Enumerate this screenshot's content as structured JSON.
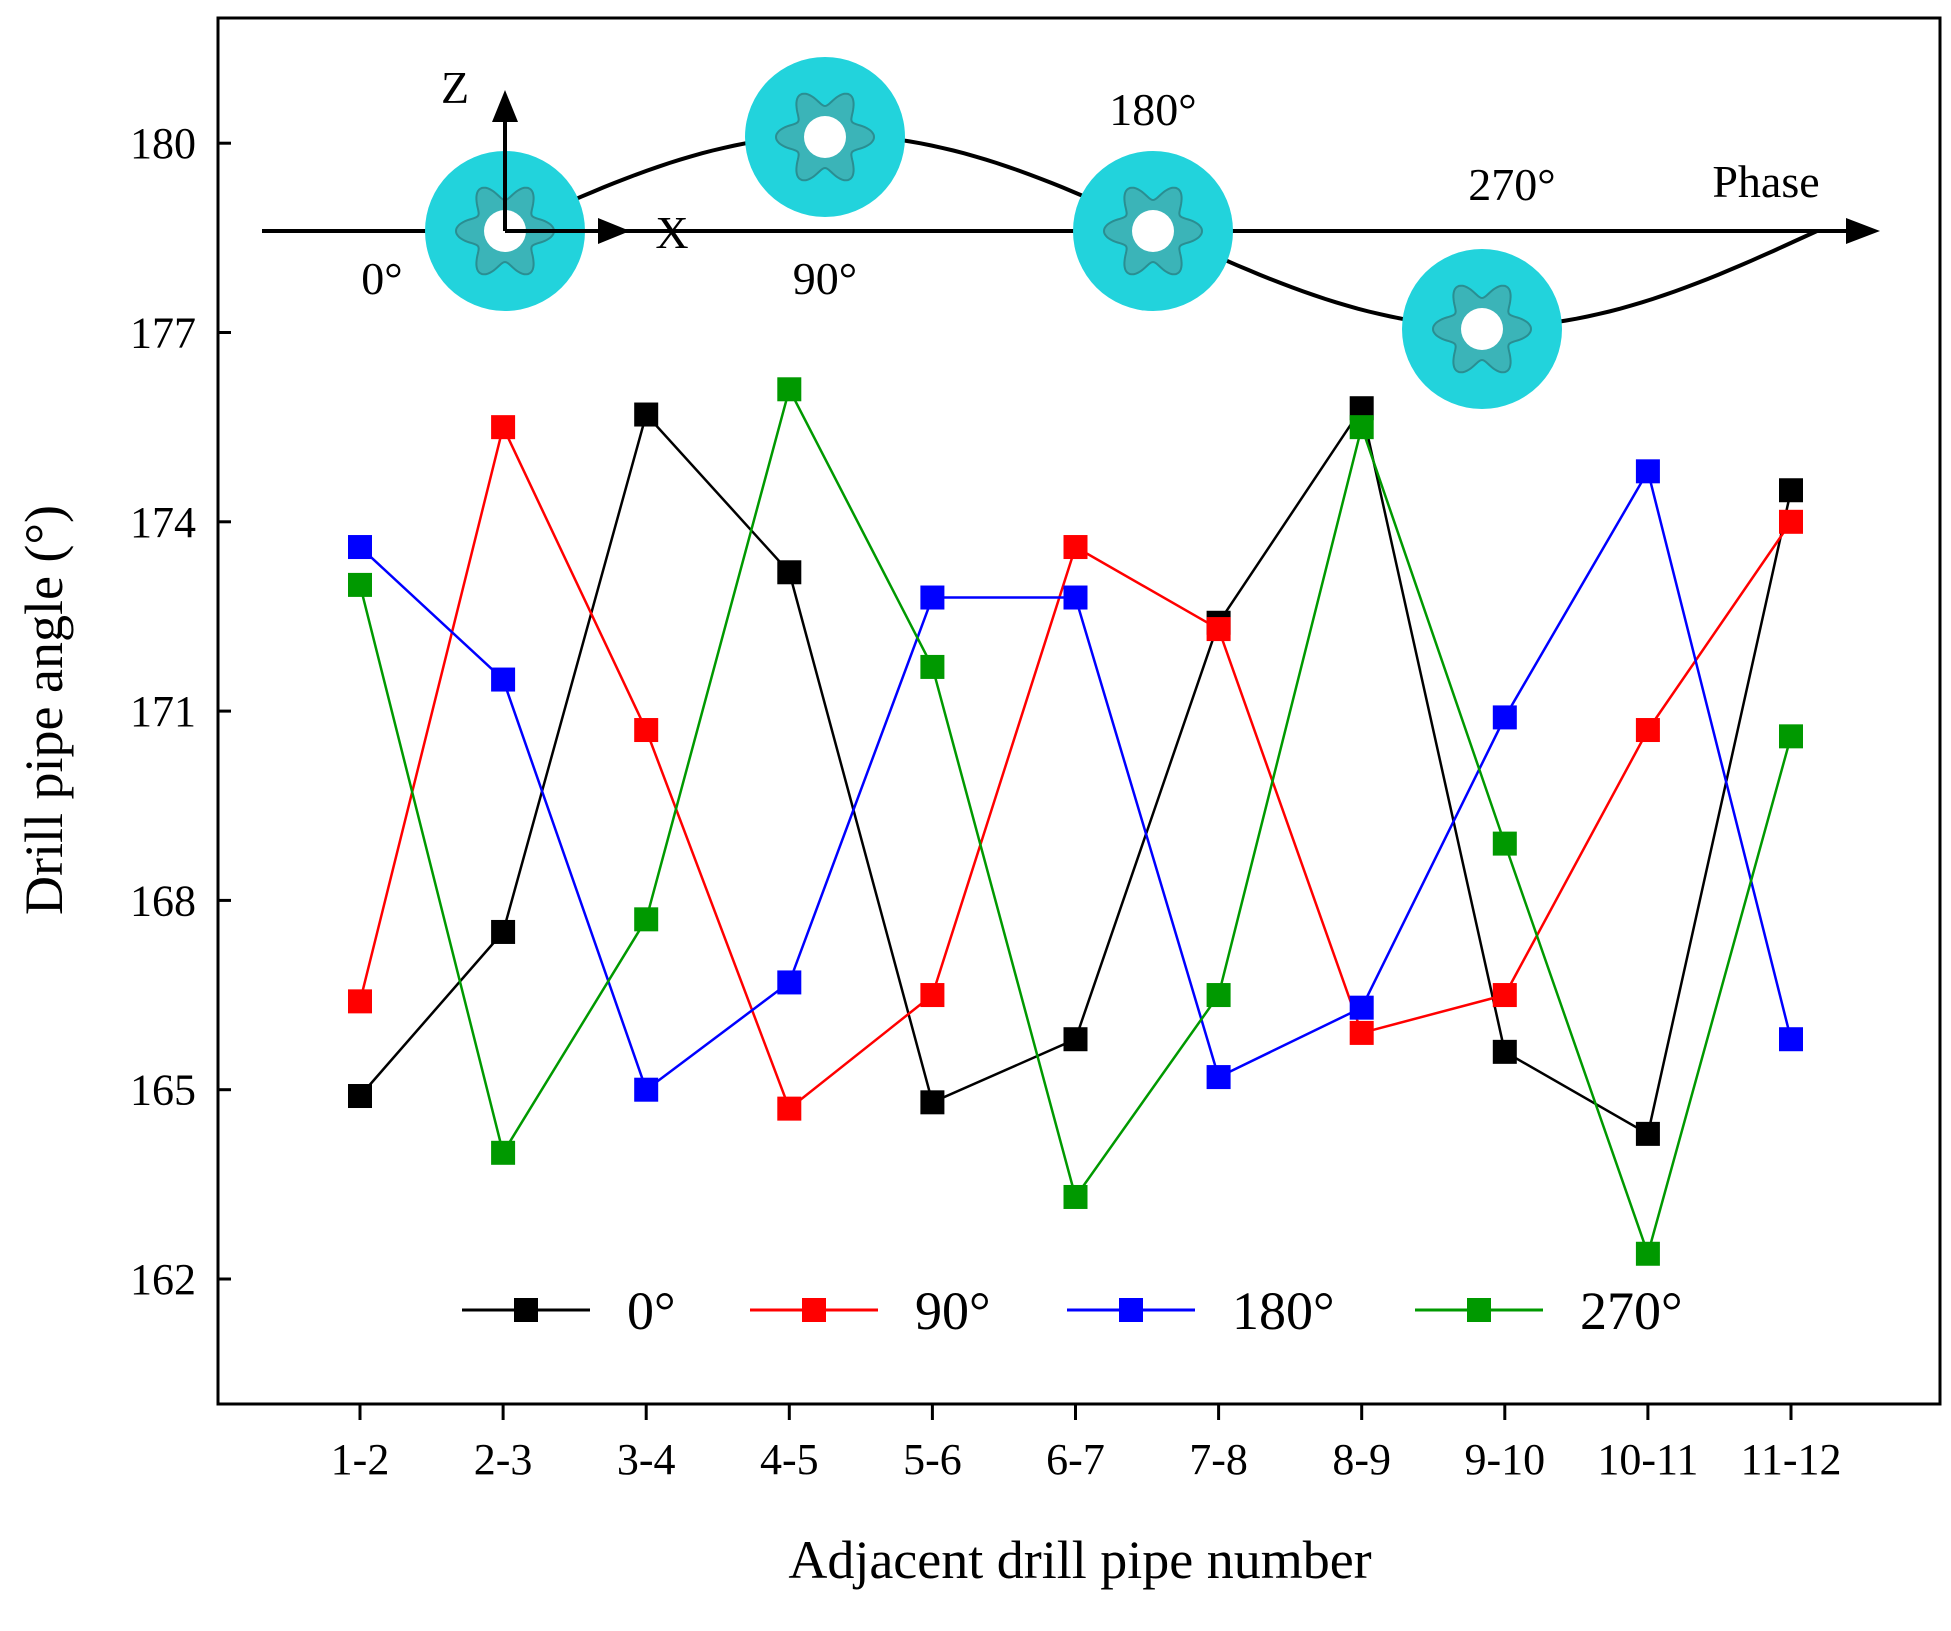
{
  "chart_data": {
    "type": "line",
    "title": "",
    "xlabel": "Adjacent drill pipe number",
    "ylabel": "Drill pipe angle (°)",
    "categories": [
      "1-2",
      "2-3",
      "3-4",
      "4-5",
      "5-6",
      "6-7",
      "7-8",
      "8-9",
      "9-10",
      "10-11",
      "11-12"
    ],
    "ylim": [
      159.8,
      182.0
    ],
    "yticks": [
      162,
      165,
      168,
      171,
      174,
      177,
      180
    ],
    "grid": false,
    "legend_position": "bottom",
    "series": [
      {
        "name": "0°",
        "color": "#000000",
        "values": [
          164.9,
          167.5,
          175.7,
          173.2,
          164.8,
          165.8,
          172.4,
          175.8,
          165.6,
          164.3,
          174.5
        ]
      },
      {
        "name": "90°",
        "color": "#ff0000",
        "values": [
          166.4,
          175.5,
          170.7,
          164.7,
          166.5,
          173.6,
          172.3,
          165.9,
          166.5,
          170.7,
          174.0
        ]
      },
      {
        "name": "180°",
        "color": "#0000ff",
        "values": [
          173.6,
          171.5,
          165.0,
          166.7,
          172.8,
          172.8,
          165.2,
          166.3,
          170.9,
          174.8,
          165.8
        ]
      },
      {
        "name": "270°",
        "color": "#009900",
        "values": [
          173.0,
          164.0,
          167.7,
          176.1,
          171.7,
          163.3,
          166.5,
          175.5,
          168.9,
          162.4,
          170.6
        ]
      }
    ],
    "inset": {
      "z_label": "Z",
      "x_label": "X",
      "phase_label": "Phase",
      "phase_labels": [
        "0°",
        "90°",
        "180°",
        "270°"
      ],
      "ring_color": "#22d3dc",
      "bit_color": "#3bb4b8"
    }
  }
}
